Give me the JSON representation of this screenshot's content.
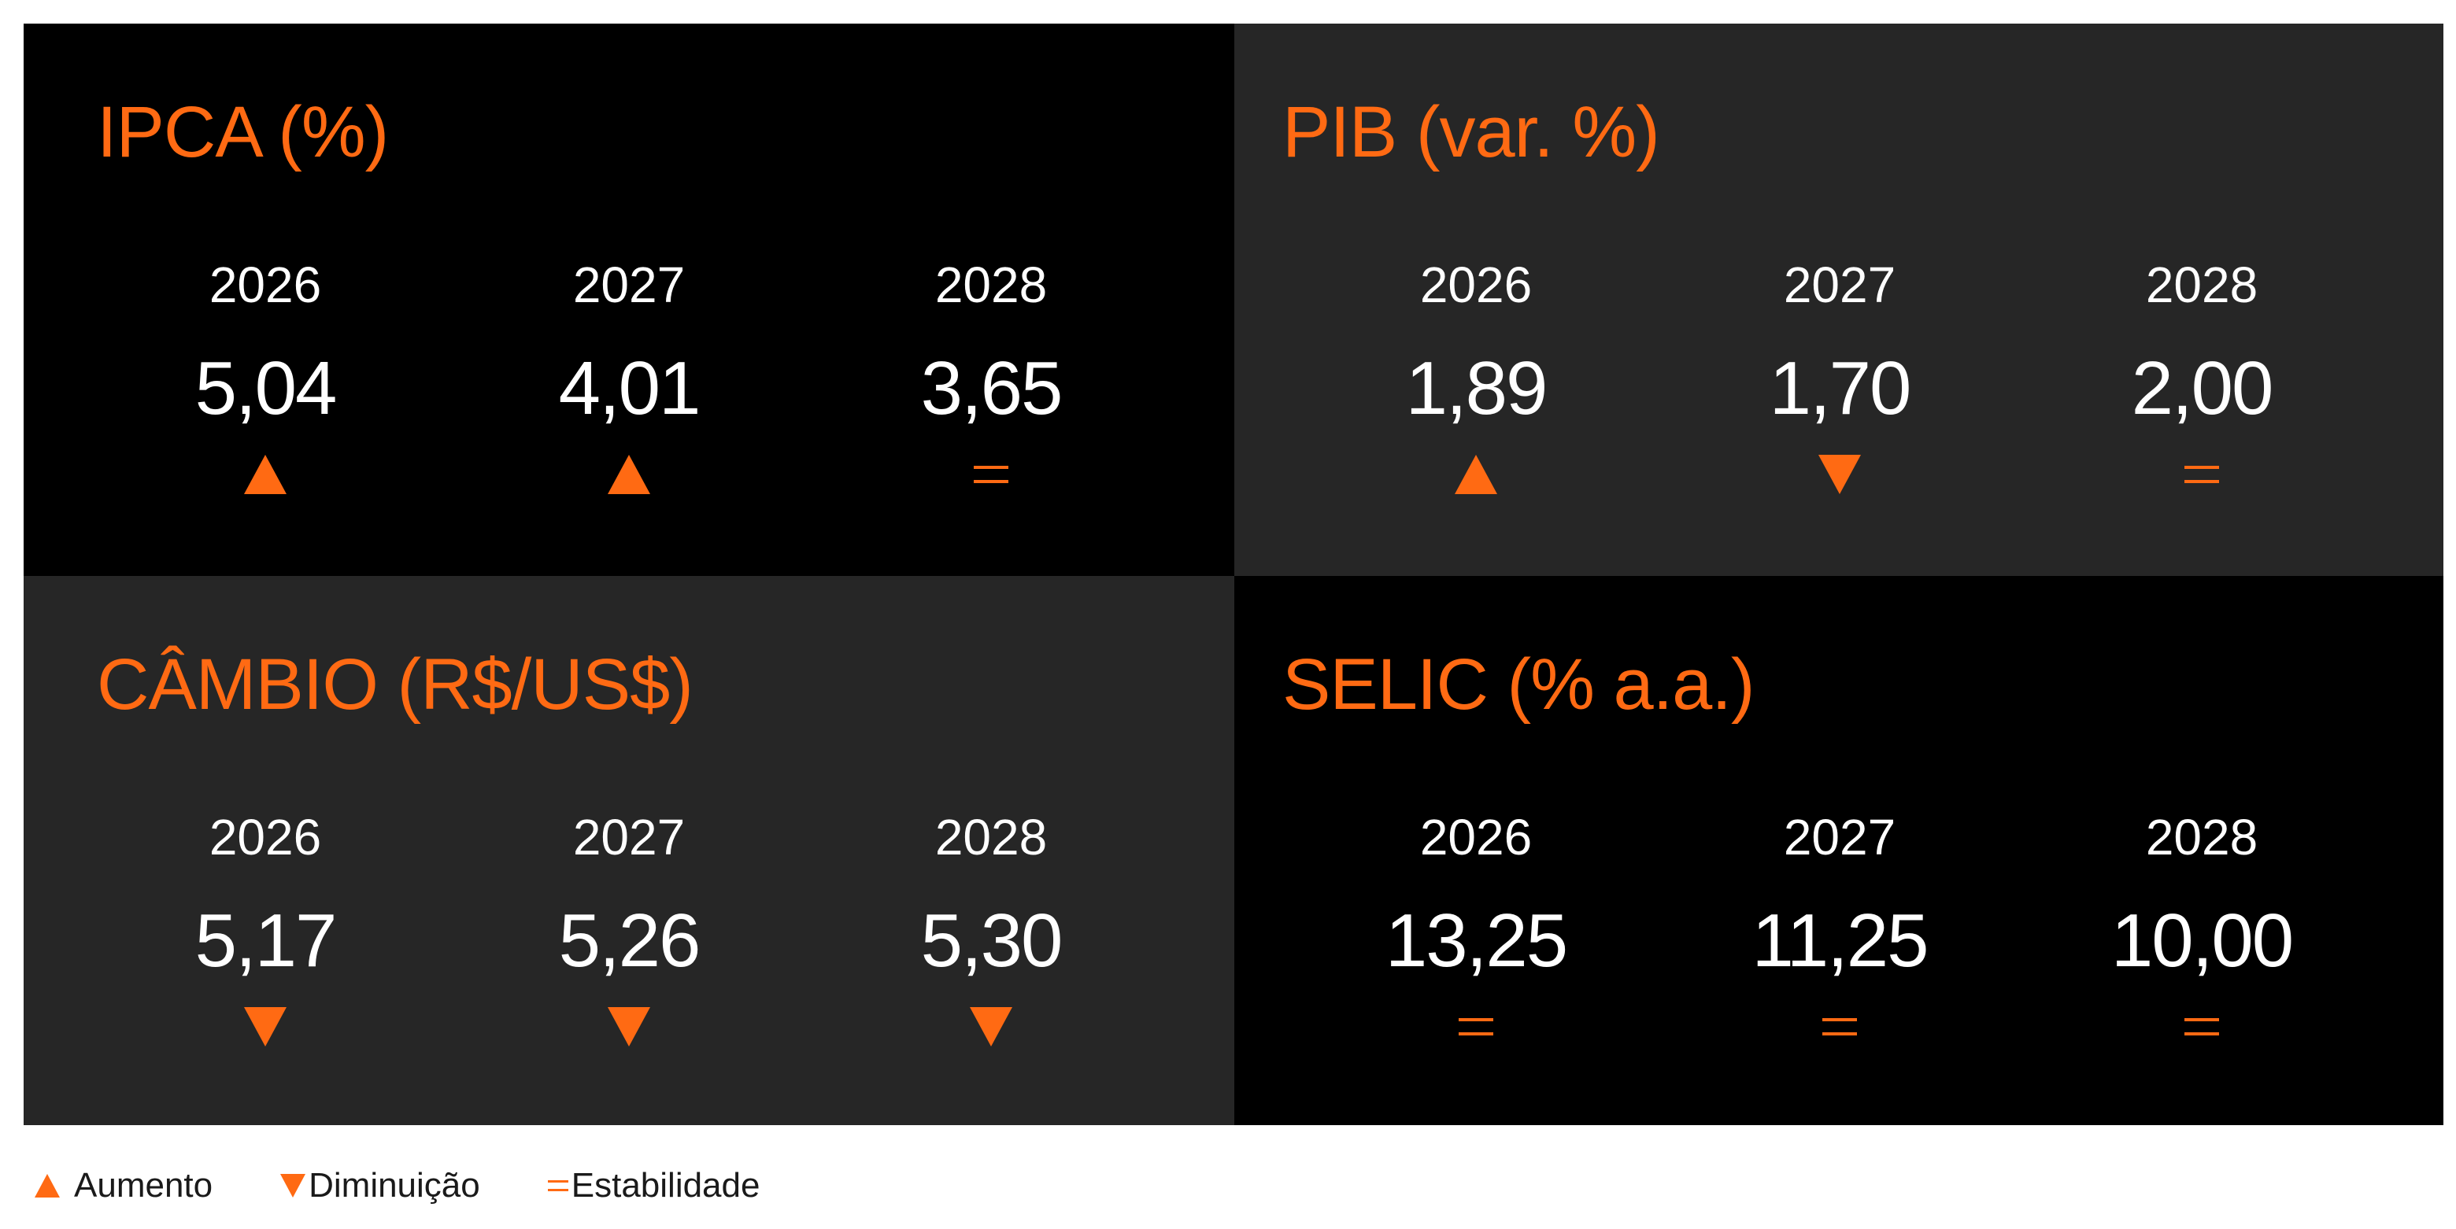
{
  "colors": {
    "accent": "#ff6a13",
    "dark_panel": "#000000",
    "gray_panel": "#262626",
    "value_text": "#ffffff"
  },
  "panels": [
    {
      "title": "IPCA (%)",
      "items": [
        {
          "year": "2026",
          "value": "5,04",
          "trend": "up"
        },
        {
          "year": "2027",
          "value": "4,01",
          "trend": "up"
        },
        {
          "year": "2028",
          "value": "3,65",
          "trend": "equal"
        }
      ]
    },
    {
      "title": "PIB (var. %)",
      "items": [
        {
          "year": "2026",
          "value": "1,89",
          "trend": "up"
        },
        {
          "year": "2027",
          "value": "1,70",
          "trend": "down"
        },
        {
          "year": "2028",
          "value": "2,00",
          "trend": "equal"
        }
      ]
    },
    {
      "title": "CÂMBIO (R$/US$)",
      "items": [
        {
          "year": "2026",
          "value": "5,17",
          "trend": "down"
        },
        {
          "year": "2027",
          "value": "5,26",
          "trend": "down"
        },
        {
          "year": "2028",
          "value": "5,30",
          "trend": "down"
        }
      ]
    },
    {
      "title": "SELIC (% a.a.)",
      "items": [
        {
          "year": "2026",
          "value": "13,25",
          "trend": "equal"
        },
        {
          "year": "2027",
          "value": "11,25",
          "trend": "equal"
        },
        {
          "year": "2028",
          "value": "10,00",
          "trend": "equal"
        }
      ]
    }
  ],
  "legend": {
    "up": "Aumento",
    "down": "Diminuição",
    "equal": "Estabilidade"
  }
}
